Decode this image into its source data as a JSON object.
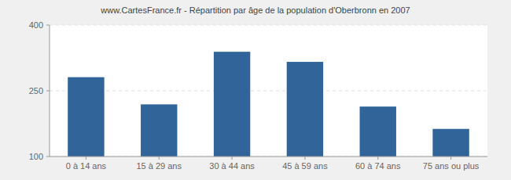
{
  "chart_data": {
    "type": "bar",
    "title": "www.CartesFrance.fr - Répartition par âge de la population d'Oberbronn en 2007",
    "categories": [
      "0 à 14 ans",
      "15 à 29 ans",
      "30 à 44 ans",
      "45 à 59 ans",
      "60 à 74 ans",
      "75 ans ou plus"
    ],
    "values": [
      281,
      219,
      339,
      316,
      214,
      163
    ],
    "color": "#31659a",
    "ylim": [
      100,
      400
    ],
    "yticks": [
      100,
      250,
      400
    ],
    "grid": true
  }
}
